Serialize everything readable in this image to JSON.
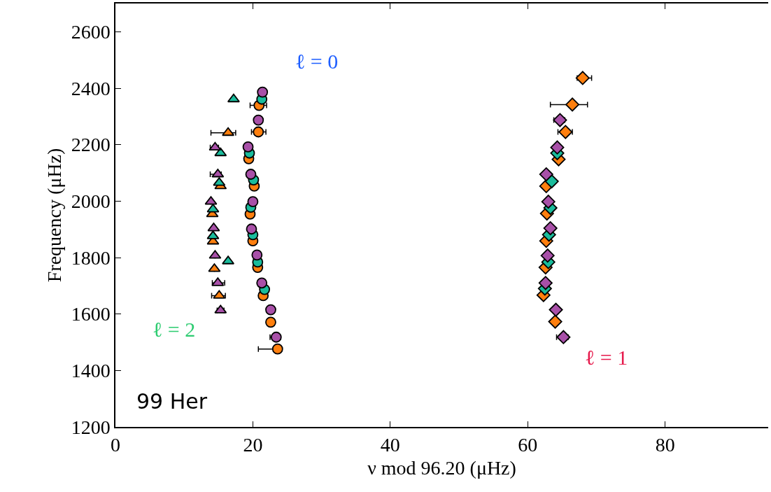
{
  "chart_data": {
    "type": "scatter",
    "xlabel": "ν mod 96.20 (μHz)",
    "ylabel": "Frequency (μHz)",
    "xlim": [
      0,
      95
    ],
    "ylim": [
      1200,
      2700
    ],
    "xticks": [
      0,
      20,
      40,
      60,
      80
    ],
    "yticks": [
      1200,
      1400,
      1600,
      1800,
      2000,
      2200,
      2400,
      2600
    ],
    "series": [
      {
        "color": "#ff7f0e",
        "marker": "circle",
        "x": [
          23.6,
          22.6,
          21.5,
          20.7,
          20.0,
          19.6,
          20.2,
          19.4,
          20.8,
          20.9
        ],
        "values": [
          1476,
          1571,
          1665,
          1765,
          1859,
          1954,
          2053,
          2150,
          2245,
          2339
        ],
        "xerrors": [
          [
            20.8,
            24.0
          ],
          null,
          null,
          null,
          null,
          null,
          null,
          null,
          [
            19.8,
            21.9
          ],
          [
            19.6,
            22.0
          ]
        ]
      },
      {
        "color": "#1abc9c",
        "marker": "circle",
        "x": [
          21.7,
          20.7,
          20.0,
          19.7,
          20.1,
          19.5,
          21.3
        ],
        "values": [
          1687,
          1784,
          1881,
          1978,
          2075,
          2170,
          2361
        ]
      },
      {
        "color": "#a850a8",
        "marker": "circle",
        "x": [
          23.4,
          22.6,
          21.3,
          20.6,
          19.8,
          20.0,
          19.7,
          19.3,
          20.8,
          21.4
        ],
        "values": [
          1518,
          1615,
          1710,
          1809,
          1901,
          1998,
          2095,
          2192,
          2287,
          2386
        ],
        "xerrors": [
          [
            22.5,
            24.0
          ],
          null,
          null,
          null,
          null,
          null,
          null,
          null,
          [
            20.2,
            21.2
          ],
          null
        ]
      },
      {
        "color": "#ff7f0e",
        "marker": "triangle",
        "x": [
          15.1,
          14.4,
          14.2,
          14.1,
          15.3,
          16.4
        ],
        "values": [
          1665,
          1760,
          1857,
          1954,
          2053,
          2242
        ],
        "xerrors": [
          [
            14.0,
            16.0
          ],
          null,
          null,
          null,
          null,
          [
            13.9,
            17.5
          ]
        ]
      },
      {
        "color": "#1abc9c",
        "marker": "triangle",
        "x": [
          16.4,
          14.2,
          14.2,
          15.1,
          15.3,
          17.2
        ],
        "values": [
          1787,
          1876,
          1971,
          2065,
          2170,
          2361
        ]
      },
      {
        "color": "#a850a8",
        "marker": "triangle",
        "x": [
          15.3,
          14.9,
          14.5,
          14.3,
          13.9,
          14.9,
          14.5
        ],
        "values": [
          1613,
          1710,
          1807,
          1904,
          1998,
          2095,
          2190
        ],
        "xerrors": [
          [
            14.8,
            15.8
          ],
          [
            14.1,
            15.9
          ],
          null,
          null,
          null,
          [
            13.8,
            15.4
          ],
          [
            13.8,
            15.0
          ]
        ]
      },
      {
        "color": "#ff7f0e",
        "marker": "diamond",
        "x": [
          64.0,
          62.3,
          62.6,
          62.7,
          62.8,
          62.7,
          64.5,
          65.5,
          66.5,
          68.0
        ],
        "values": [
          1573,
          1667,
          1765,
          1859,
          1956,
          2053,
          2148,
          2245,
          2342,
          2436
        ],
        "xerrors": [
          null,
          null,
          null,
          null,
          null,
          null,
          null,
          [
            64.4,
            66.5
          ],
          [
            63.3,
            68.7
          ],
          [
            67.2,
            69.3
          ]
        ]
      },
      {
        "color": "#1abc9c",
        "marker": "diamond",
        "x": [
          62.5,
          63.0,
          63.1,
          63.3,
          63.5,
          64.3
        ],
        "values": [
          1690,
          1784,
          1881,
          1976,
          2070,
          2170
        ]
      },
      {
        "color": "#a850a8",
        "marker": "diamond",
        "x": [
          65.2,
          64.1,
          62.6,
          62.9,
          63.3,
          63.0,
          62.7,
          64.3,
          64.7
        ],
        "values": [
          1518,
          1615,
          1710,
          1807,
          1904,
          1998,
          2095,
          2190,
          2287
        ],
        "xerrors": [
          [
            64.2,
            65.9
          ],
          null,
          null,
          null,
          null,
          null,
          null,
          null,
          [
            63.8,
            65.4
          ]
        ]
      }
    ],
    "annotations": [
      "ℓ = 0",
      "ℓ = 2",
      "ℓ = 1",
      "99 Her"
    ]
  }
}
